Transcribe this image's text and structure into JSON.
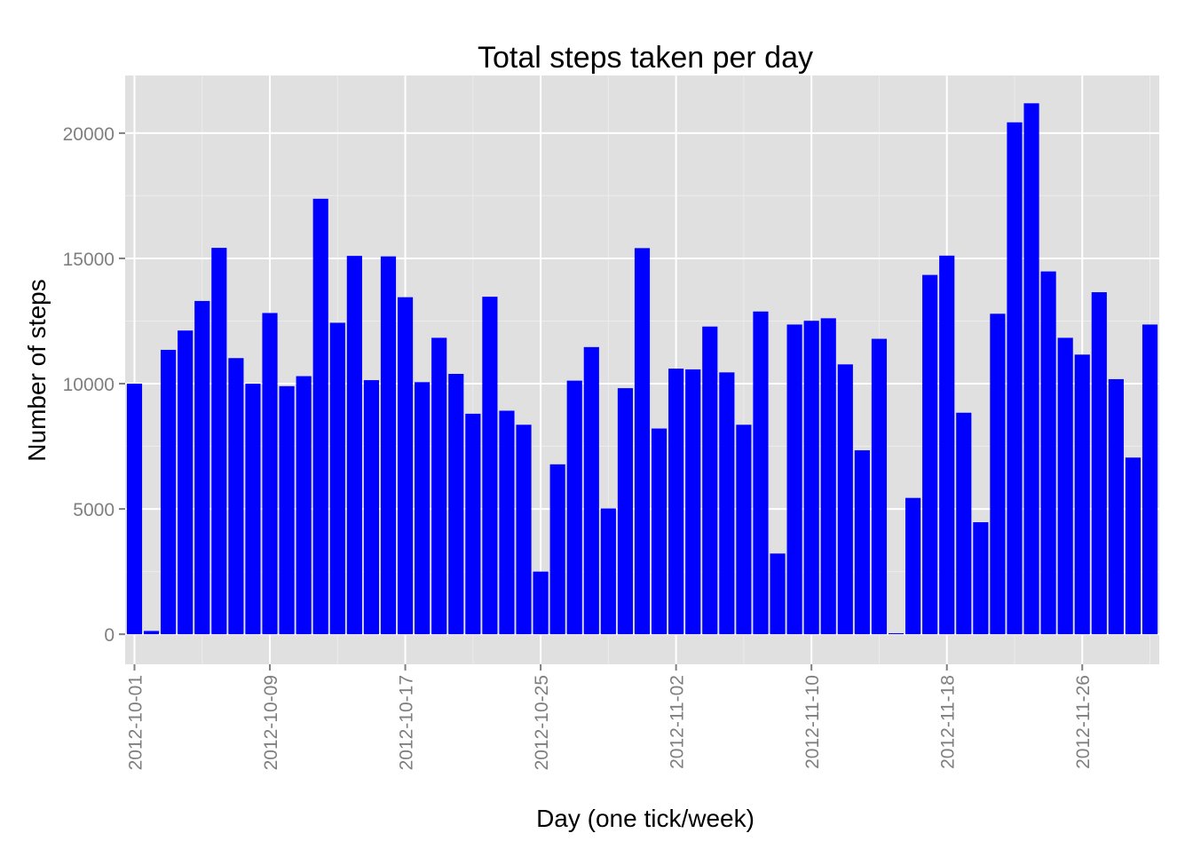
{
  "chart_data": {
    "type": "bar",
    "title": "Total steps taken per day",
    "xlabel": "Day (one tick/week)",
    "ylabel": "Number of steps",
    "x_tick_labels": [
      "2012-10-01",
      "2012-10-09",
      "2012-10-17",
      "2012-10-25",
      "2012-11-02",
      "2012-11-10",
      "2012-11-18",
      "2012-11-26"
    ],
    "y_tick_labels": [
      "0",
      "5000",
      "10000",
      "15000",
      "20000"
    ],
    "y_ticks": [
      0,
      5000,
      10000,
      15000,
      20000
    ],
    "ylim": [
      -1200,
      22300
    ],
    "x_range": [
      "2012-09-30",
      "2012-11-30"
    ],
    "grid": true,
    "bar_color": "#0000ff",
    "panel_background": "#e0e0e0",
    "grid_color": "#ffffff",
    "categories": [
      "2012-10-01",
      "2012-10-02",
      "2012-10-03",
      "2012-10-04",
      "2012-10-05",
      "2012-10-06",
      "2012-10-07",
      "2012-10-08",
      "2012-10-09",
      "2012-10-10",
      "2012-10-11",
      "2012-10-12",
      "2012-10-13",
      "2012-10-14",
      "2012-10-15",
      "2012-10-16",
      "2012-10-17",
      "2012-10-18",
      "2012-10-19",
      "2012-10-20",
      "2012-10-21",
      "2012-10-22",
      "2012-10-23",
      "2012-10-24",
      "2012-10-25",
      "2012-10-26",
      "2012-10-27",
      "2012-10-28",
      "2012-10-29",
      "2012-10-30",
      "2012-10-31",
      "2012-11-01",
      "2012-11-02",
      "2012-11-03",
      "2012-11-04",
      "2012-11-05",
      "2012-11-06",
      "2012-11-07",
      "2012-11-08",
      "2012-11-09",
      "2012-11-10",
      "2012-11-11",
      "2012-11-12",
      "2012-11-13",
      "2012-11-14",
      "2012-11-15",
      "2012-11-16",
      "2012-11-17",
      "2012-11-18",
      "2012-11-19",
      "2012-11-20",
      "2012-11-21",
      "2012-11-22",
      "2012-11-23",
      "2012-11-24",
      "2012-11-25",
      "2012-11-26",
      "2012-11-27",
      "2012-11-28",
      "2012-11-29",
      "2012-11-30"
    ],
    "values": [
      10000,
      130,
      11350,
      12120,
      13300,
      15420,
      11020,
      10000,
      12820,
      9900,
      10300,
      17380,
      12430,
      15100,
      10140,
      15080,
      13450,
      10060,
      11830,
      10390,
      8800,
      13470,
      8920,
      8360,
      2500,
      6780,
      10120,
      11460,
      5020,
      9820,
      15410,
      8210,
      10600,
      10570,
      12280,
      10450,
      8360,
      12880,
      3220,
      12360,
      12510,
      12610,
      10770,
      7340,
      11790,
      40,
      5440,
      14340,
      15110,
      8840,
      4470,
      12790,
      20430,
      21190,
      14480,
      11830,
      11160,
      13650,
      10180,
      7050,
      12360
    ]
  }
}
